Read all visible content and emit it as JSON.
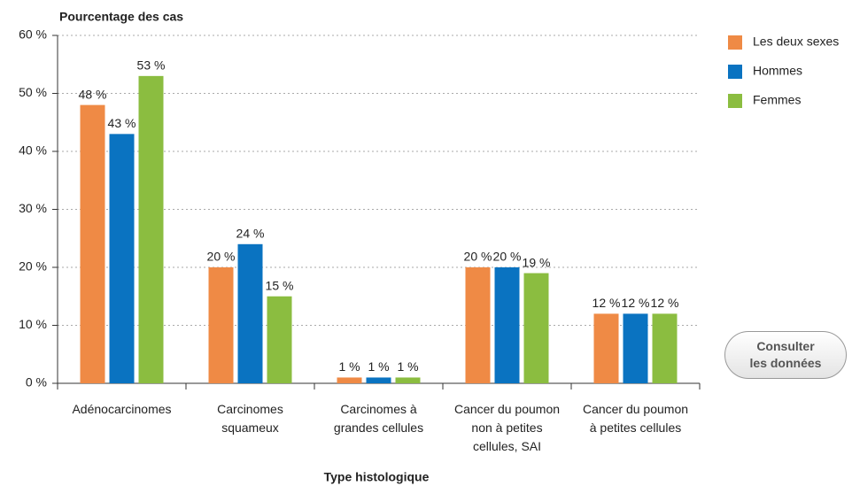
{
  "chart_data": {
    "type": "bar",
    "title": "Pourcentage des cas",
    "x_label": "Type histologique",
    "categories": [
      "Adénocarcinomes",
      "Carcinomes\nsquameux",
      "Carcinomes à\ngrandes cellules",
      "Cancer du poumon\nnon à petites\ncellules, SAI",
      "Cancer du poumon\nà petites cellules"
    ],
    "series": [
      {
        "name": "Les deux sexes",
        "color": "#ef8a45",
        "values": [
          48,
          20,
          1,
          20,
          12
        ],
        "value_labels": [
          "48 %",
          "20 %",
          "1 %",
          "20 %",
          "12 %"
        ]
      },
      {
        "name": "Hommes",
        "color": "#0a73c1",
        "values": [
          43,
          24,
          1,
          20,
          12
        ],
        "value_labels": [
          "43 %",
          "24 %",
          "1 %",
          "20 %",
          "12 %"
        ]
      },
      {
        "name": "Femmes",
        "color": "#8bbd40",
        "values": [
          53,
          15,
          1,
          19,
          12
        ],
        "value_labels": [
          "53 %",
          "15 %",
          "1 %",
          "19 %",
          "12 %"
        ]
      }
    ],
    "ylim": [
      0,
      60
    ],
    "yticks": [
      {
        "value": 0,
        "label": "0 %"
      },
      {
        "value": 10,
        "label": "10 %"
      },
      {
        "value": 20,
        "label": "20 %"
      },
      {
        "value": 30,
        "label": "30 %"
      },
      {
        "value": 40,
        "label": "40 %"
      },
      {
        "value": 50,
        "label": "50 %"
      },
      {
        "value": 60,
        "label": "60 %"
      }
    ],
    "grid": true
  },
  "button": {
    "label": "Consulter\nles données"
  }
}
